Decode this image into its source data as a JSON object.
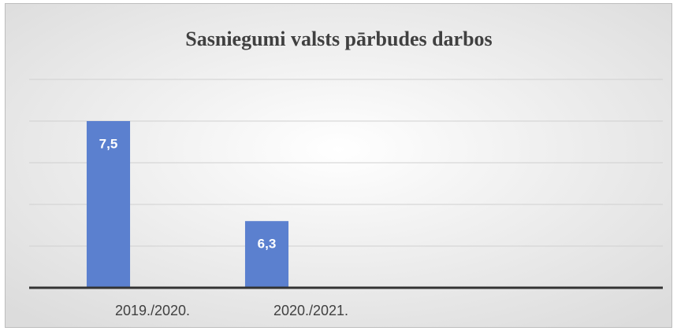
{
  "chart_data": {
    "type": "bar",
    "title": "Sasniegumi valsts pārbudes darbos",
    "categories": [
      "2019./2020.",
      "2020./2021.",
      null,
      null
    ],
    "values": [
      7.5,
      6.3,
      null,
      null
    ],
    "value_labels": [
      "7,5",
      "6,3",
      null,
      null
    ],
    "color": "#5b80cf",
    "ylim": [
      5.5,
      8
    ],
    "yticks": [
      5.5,
      6,
      6.5,
      7,
      7.5,
      8
    ],
    "grid": true
  }
}
